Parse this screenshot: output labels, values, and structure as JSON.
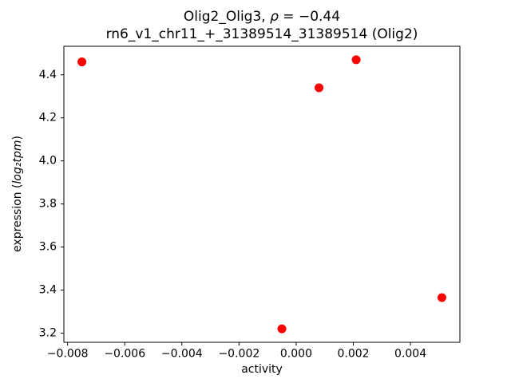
{
  "figure": {
    "title_part1": "Olig2_Olig3, ",
    "title_rho": "ρ",
    "title_part2": " = −0.44",
    "title_line2": "rn6_v1_chr11_+_31389514_31389514 (Olig2)",
    "xlabel": "activity",
    "ylabel_part1": "expression (",
    "ylabel_italic": "log₂tpm",
    "ylabel_part2": ")"
  },
  "chart_data": {
    "type": "scatter",
    "title": "Olig2_Olig3, ρ = −0.44\nrn6_v1_chr11_+_31389514_31389514 (Olig2)",
    "xlabel": "activity",
    "ylabel": "expression (log₂tpm)",
    "x": [
      -0.0075,
      -0.0005,
      0.0008,
      0.0021,
      0.0051
    ],
    "y": [
      4.46,
      3.22,
      4.34,
      4.47,
      3.365
    ],
    "marker_color": "#ff0000",
    "axis_color": "#000000",
    "xlim": [
      -0.00813,
      0.00573
    ],
    "ylim": [
      3.1575,
      4.5325
    ],
    "xticks": [
      -0.008,
      -0.006,
      -0.004,
      -0.002,
      0.0,
      0.002,
      0.004
    ],
    "xtick_labels": [
      "−0.008",
      "−0.006",
      "−0.004",
      "−0.002",
      "0.000",
      "0.002",
      "0.004"
    ],
    "yticks": [
      3.2,
      3.4,
      3.6,
      3.8,
      4.0,
      4.2,
      4.4
    ],
    "ytick_labels": [
      "3.2",
      "3.4",
      "3.6",
      "3.8",
      "4.0",
      "4.2",
      "4.4"
    ],
    "grid": false,
    "legend": "none"
  }
}
